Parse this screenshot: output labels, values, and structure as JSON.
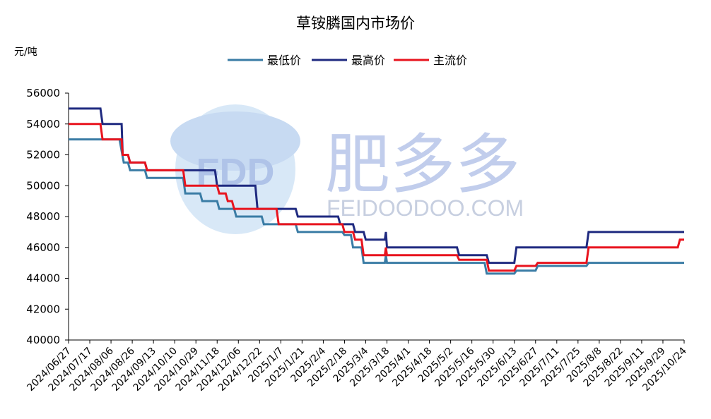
{
  "chart_data": {
    "type": "line",
    "title": "草铵膦国内市场价",
    "ylabel": "元/吨",
    "xlabel": "",
    "ylim": [
      40000,
      56000
    ],
    "ystep": 2000,
    "grid": false,
    "legend_position": "top",
    "watermark": {
      "brand": "肥多多",
      "site": "FEIDOODOO.COM",
      "logo": "FDD"
    },
    "x_ticks": [
      "2024/06/27",
      "2024/07/17",
      "2024/08/06",
      "2024/08/26",
      "2024/09/13",
      "2024/10/10",
      "2024/10/29",
      "2024/11/18",
      "2024/12/06",
      "2024/12/22",
      "2025/1/7",
      "2025/1/21",
      "2025/2/4",
      "2025/2/18",
      "2025/3/4",
      "2025/3/18",
      "2025/4/1",
      "2025/4/18",
      "2025/5/2",
      "2025/5/16",
      "2025/5/30",
      "2025/6/13",
      "2025/6/27",
      "2025/7/11",
      "2025/7/25",
      "2025/8/8",
      "2025/8/22",
      "2025/9/11",
      "2025/9/29",
      "2025/10/24"
    ],
    "series": [
      {
        "name": "最低价",
        "color": "#3a7ca5",
        "points": [
          [
            0,
            53000
          ],
          [
            1.5,
            53000
          ],
          [
            1.6,
            53000
          ],
          [
            2.4,
            53000
          ],
          [
            2.6,
            51500
          ],
          [
            2.8,
            51500
          ],
          [
            2.9,
            51000
          ],
          [
            3.6,
            51000
          ],
          [
            3.7,
            50500
          ],
          [
            5.4,
            50500
          ],
          [
            5.5,
            49500
          ],
          [
            6.2,
            49500
          ],
          [
            6.3,
            49000
          ],
          [
            7.0,
            49000
          ],
          [
            7.1,
            48500
          ],
          [
            7.8,
            48500
          ],
          [
            7.9,
            48000
          ],
          [
            9.1,
            48000
          ],
          [
            9.2,
            47500
          ],
          [
            10.7,
            47500
          ],
          [
            10.8,
            47000
          ],
          [
            12.9,
            47000
          ],
          [
            13.0,
            46800
          ],
          [
            13.3,
            46800
          ],
          [
            13.4,
            46000
          ],
          [
            13.8,
            46000
          ],
          [
            13.9,
            45000
          ],
          [
            14.9,
            45000
          ],
          [
            14.95,
            45500
          ],
          [
            15.0,
            45000
          ],
          [
            19.6,
            45000
          ],
          [
            19.7,
            44300
          ],
          [
            21.0,
            44300
          ],
          [
            21.1,
            44500
          ],
          [
            22.0,
            44500
          ],
          [
            22.1,
            44800
          ],
          [
            24.4,
            44800
          ],
          [
            24.5,
            45000
          ],
          [
            27.0,
            45000
          ],
          [
            28.0,
            45000
          ],
          [
            29.0,
            45000
          ]
        ]
      },
      {
        "name": "最高价",
        "color": "#1f2a80",
        "points": [
          [
            0,
            55000
          ],
          [
            1.5,
            55000
          ],
          [
            1.6,
            54000
          ],
          [
            2.5,
            54000
          ],
          [
            2.55,
            52000
          ],
          [
            2.8,
            52000
          ],
          [
            2.9,
            51500
          ],
          [
            3.6,
            51500
          ],
          [
            3.7,
            51000
          ],
          [
            6.2,
            51000
          ],
          [
            6.3,
            51000
          ],
          [
            6.9,
            51000
          ],
          [
            7.0,
            50000
          ],
          [
            8.8,
            50000
          ],
          [
            8.9,
            48500
          ],
          [
            10.7,
            48500
          ],
          [
            10.8,
            48000
          ],
          [
            12.7,
            48000
          ],
          [
            12.8,
            47500
          ],
          [
            13.4,
            47500
          ],
          [
            13.5,
            47000
          ],
          [
            13.9,
            47000
          ],
          [
            14.0,
            46500
          ],
          [
            14.9,
            46500
          ],
          [
            14.95,
            47000
          ],
          [
            15.0,
            46000
          ],
          [
            18.3,
            46000
          ],
          [
            18.4,
            45500
          ],
          [
            19.7,
            45500
          ],
          [
            19.8,
            45000
          ],
          [
            21.0,
            45000
          ],
          [
            21.1,
            46000
          ],
          [
            24.4,
            46000
          ],
          [
            24.5,
            47000
          ],
          [
            29.0,
            47000
          ]
        ]
      },
      {
        "name": "主流价",
        "color": "#e8141e",
        "points": [
          [
            0,
            54000
          ],
          [
            1.5,
            54000
          ],
          [
            1.6,
            53000
          ],
          [
            2.5,
            53000
          ],
          [
            2.55,
            52000
          ],
          [
            2.8,
            52000
          ],
          [
            2.9,
            51500
          ],
          [
            3.6,
            51500
          ],
          [
            3.7,
            51000
          ],
          [
            5.4,
            51000
          ],
          [
            5.5,
            50000
          ],
          [
            7.0,
            50000
          ],
          [
            7.1,
            49500
          ],
          [
            7.4,
            49500
          ],
          [
            7.5,
            49000
          ],
          [
            7.7,
            49000
          ],
          [
            7.8,
            48500
          ],
          [
            9.8,
            48500
          ],
          [
            9.9,
            47500
          ],
          [
            12.9,
            47500
          ],
          [
            13.0,
            47000
          ],
          [
            13.4,
            47000
          ],
          [
            13.5,
            46500
          ],
          [
            13.8,
            46500
          ],
          [
            13.9,
            45500
          ],
          [
            14.9,
            45500
          ],
          [
            14.95,
            46000
          ],
          [
            15.0,
            45500
          ],
          [
            18.3,
            45500
          ],
          [
            18.4,
            45200
          ],
          [
            19.7,
            45200
          ],
          [
            19.8,
            44500
          ],
          [
            21.0,
            44500
          ],
          [
            21.1,
            44800
          ],
          [
            22.0,
            44800
          ],
          [
            22.1,
            45000
          ],
          [
            24.4,
            45000
          ],
          [
            24.5,
            46000
          ],
          [
            28.7,
            46000
          ],
          [
            28.8,
            46500
          ],
          [
            29.0,
            46500
          ]
        ]
      }
    ]
  }
}
